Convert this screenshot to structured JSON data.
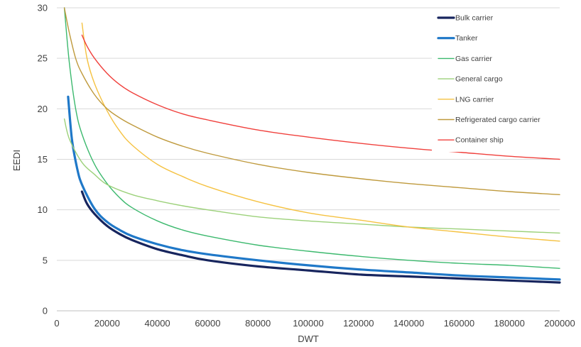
{
  "chart_data": {
    "type": "line",
    "title": "",
    "xlabel": "DWT",
    "ylabel": "EEDI",
    "xlim": [
      0,
      200000
    ],
    "ylim": [
      0,
      30
    ],
    "xticks": [
      0,
      20000,
      40000,
      60000,
      80000,
      100000,
      120000,
      140000,
      160000,
      180000,
      200000
    ],
    "yticks": [
      0,
      5,
      10,
      15,
      20,
      25,
      30
    ],
    "grid": "horizontal",
    "legend_position": "top-right",
    "series": [
      {
        "name": "Bulk carrier",
        "color": "#17255e",
        "x": [
          10000,
          12000,
          15000,
          20000,
          25000,
          30000,
          40000,
          50000,
          60000,
          80000,
          100000,
          120000,
          140000,
          160000,
          180000,
          200000
        ],
        "y": [
          11.8,
          10.6,
          9.6,
          8.4,
          7.6,
          7.0,
          6.1,
          5.5,
          5.0,
          4.4,
          4.0,
          3.6,
          3.4,
          3.2,
          3.0,
          2.8
        ]
      },
      {
        "name": "Tanker",
        "color": "#1f78c8",
        "x": [
          4500,
          6000,
          8000,
          10000,
          15000,
          20000,
          25000,
          30000,
          40000,
          50000,
          60000,
          80000,
          100000,
          120000,
          140000,
          160000,
          180000,
          200000
        ],
        "y": [
          21.2,
          17.0,
          14.2,
          12.5,
          10.1,
          8.8,
          8.0,
          7.4,
          6.6,
          6.0,
          5.6,
          5.0,
          4.5,
          4.1,
          3.8,
          3.5,
          3.3,
          3.1
        ]
      },
      {
        "name": "Gas carrier",
        "color": "#3cb96e",
        "x": [
          3000,
          5000,
          7500,
          10000,
          15000,
          20000,
          25000,
          30000,
          40000,
          50000,
          60000,
          80000,
          100000,
          120000,
          140000,
          160000,
          180000,
          200000
        ],
        "y": [
          30,
          24.5,
          20.0,
          17.5,
          14.5,
          12.6,
          11.2,
          10.2,
          8.9,
          8.0,
          7.4,
          6.5,
          5.9,
          5.4,
          5.0,
          4.7,
          4.5,
          4.2
        ]
      },
      {
        "name": "General cargo",
        "color": "#9cd17a",
        "x": [
          3000,
          5000,
          10000,
          15000,
          20000,
          30000,
          40000,
          50000,
          60000,
          80000,
          100000,
          120000,
          140000,
          160000,
          180000,
          200000
        ],
        "y": [
          19.0,
          17.0,
          14.7,
          13.5,
          12.5,
          11.5,
          10.9,
          10.4,
          10.0,
          9.3,
          8.9,
          8.6,
          8.3,
          8.1,
          7.9,
          7.7
        ]
      },
      {
        "name": "LNG carrier",
        "color": "#f5c242",
        "x": [
          10000,
          12000,
          15000,
          20000,
          25000,
          30000,
          40000,
          50000,
          60000,
          80000,
          100000,
          120000,
          140000,
          160000,
          180000,
          200000
        ],
        "y": [
          28.5,
          25.0,
          22.5,
          19.8,
          17.8,
          16.4,
          14.5,
          13.3,
          12.3,
          10.8,
          9.7,
          9.0,
          8.3,
          7.8,
          7.3,
          6.9
        ]
      },
      {
        "name": "Refrigerated cargo carrier",
        "color": "#bf9a3d",
        "x": [
          3000,
          5000,
          7500,
          10000,
          15000,
          20000,
          25000,
          30000,
          40000,
          50000,
          60000,
          80000,
          100000,
          120000,
          140000,
          160000,
          180000,
          200000
        ],
        "y": [
          30,
          27.5,
          25.0,
          23.5,
          21.4,
          20.0,
          19.1,
          18.4,
          17.2,
          16.3,
          15.6,
          14.5,
          13.7,
          13.1,
          12.6,
          12.2,
          11.8,
          11.5
        ]
      },
      {
        "name": "Container ship",
        "color": "#f0403c",
        "x": [
          10000,
          12000,
          15000,
          20000,
          25000,
          30000,
          40000,
          50000,
          60000,
          80000,
          100000,
          120000,
          140000,
          160000,
          180000,
          200000
        ],
        "y": [
          27.3,
          26.2,
          25.0,
          23.5,
          22.4,
          21.6,
          20.4,
          19.5,
          18.9,
          17.9,
          17.2,
          16.6,
          16.1,
          15.7,
          15.3,
          15.0
        ]
      }
    ]
  }
}
